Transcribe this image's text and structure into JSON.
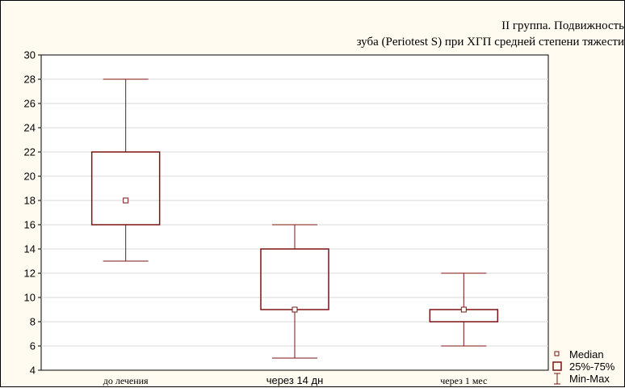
{
  "chart_data": {
    "type": "box",
    "title_line1": "II группа. Подвижность",
    "title_line2": "зуба (Periotest S) при ХГП средней степени тяжести",
    "categories": [
      "до лечения",
      "через 14 дн",
      "через 1 мес"
    ],
    "boxes": [
      {
        "min": 13,
        "q1": 16,
        "median": 18,
        "q3": 22,
        "max": 28
      },
      {
        "min": 5,
        "q1": 9,
        "median": 9,
        "q3": 14,
        "max": 16
      },
      {
        "min": 6,
        "q1": 8,
        "median": 9,
        "q3": 9,
        "max": 12
      }
    ],
    "ylim": [
      4,
      30
    ],
    "yticks": [
      "30",
      "28",
      "26",
      "24",
      "22",
      "20",
      "18",
      "16",
      "14",
      "12",
      "10",
      "8",
      "6",
      "4"
    ],
    "grid": true,
    "legend": {
      "placement": "bottom-right",
      "items": [
        "Median",
        "25%-75%",
        "Min-Max"
      ]
    },
    "colors": {
      "series": "#7b1414",
      "grid": "#d8d8d8",
      "plot_background": "#ffffff",
      "page_background": "#fffbf0"
    }
  }
}
